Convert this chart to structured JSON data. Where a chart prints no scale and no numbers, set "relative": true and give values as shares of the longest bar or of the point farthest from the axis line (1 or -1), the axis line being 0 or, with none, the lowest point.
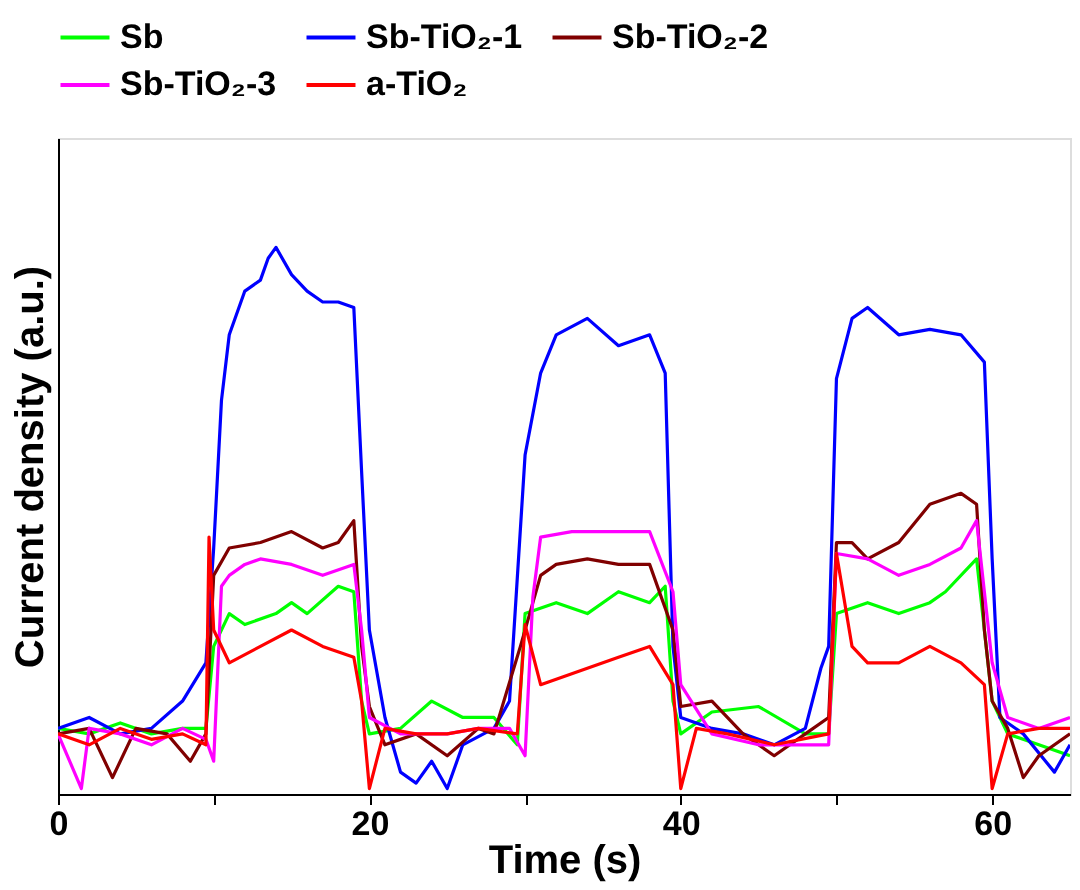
{
  "chart_data": {
    "type": "line",
    "xlabel": "Time (s)",
    "ylabel": "Current density (a.u.)",
    "relative": true,
    "xlim": [
      0,
      65
    ],
    "xticks": [
      0,
      {
        "value": 10,
        "label": null
      },
      20,
      {
        "value": 30,
        "label": null
      },
      40,
      {
        "value": 50,
        "label": null
      },
      60
    ],
    "legend": "top",
    "grid": false,
    "line_style": "solid",
    "marker": "none",
    "series": [
      {
        "name": "Sb",
        "color": "#00ff00",
        "x": [
          0,
          2,
          4,
          6,
          8,
          9.5,
          10,
          11,
          12,
          14,
          15,
          16,
          18,
          19,
          19.5,
          20,
          22,
          24,
          26,
          28,
          29.5,
          30,
          32,
          34,
          36,
          38,
          39,
          39.5,
          40,
          42,
          45,
          48,
          49.5,
          50,
          52,
          54,
          56,
          57,
          59,
          60,
          61,
          63,
          65
        ],
        "values": [
          0.12,
          0.11,
          0.13,
          0.11,
          0.12,
          0.12,
          0.27,
          0.33,
          0.31,
          0.33,
          0.35,
          0.33,
          0.38,
          0.37,
          0.17,
          0.11,
          0.12,
          0.17,
          0.14,
          0.14,
          0.09,
          0.33,
          0.35,
          0.33,
          0.37,
          0.35,
          0.38,
          0.17,
          0.11,
          0.15,
          0.16,
          0.11,
          0.11,
          0.33,
          0.35,
          0.33,
          0.35,
          0.37,
          0.43,
          0.17,
          0.11,
          0.09,
          0.07
        ]
      },
      {
        "name": "Sb-TiO₂-1",
        "color": "#0000ff",
        "x": [
          0,
          2,
          4,
          6,
          8,
          9.5,
          10,
          10.5,
          11,
          12,
          13,
          13.5,
          14,
          15,
          16,
          17,
          18,
          19,
          19.5,
          20,
          21,
          22,
          23,
          24,
          25,
          26,
          28,
          29,
          30,
          31,
          32,
          34,
          36,
          38,
          39,
          39.5,
          40,
          42,
          44,
          46,
          48,
          49,
          49.5,
          50,
          51,
          52,
          54,
          56,
          58,
          59.5,
          60,
          60.5,
          62,
          64,
          65
        ],
        "values": [
          0.12,
          0.14,
          0.11,
          0.12,
          0.17,
          0.24,
          0.45,
          0.72,
          0.84,
          0.92,
          0.94,
          0.98,
          1.0,
          0.95,
          0.92,
          0.9,
          0.9,
          0.89,
          0.59,
          0.3,
          0.14,
          0.04,
          0.02,
          0.06,
          0.01,
          0.09,
          0.12,
          0.17,
          0.62,
          0.77,
          0.84,
          0.87,
          0.82,
          0.84,
          0.77,
          0.27,
          0.14,
          0.12,
          0.11,
          0.09,
          0.12,
          0.23,
          0.27,
          0.76,
          0.87,
          0.89,
          0.84,
          0.85,
          0.84,
          0.79,
          0.43,
          0.14,
          0.11,
          0.04,
          0.09
        ]
      },
      {
        "name": "Sb-TiO₂-2",
        "color": "#800000",
        "x": [
          0,
          2,
          3.5,
          5,
          7,
          8.5,
          9.5,
          10,
          11,
          13,
          15,
          17,
          18,
          19,
          19.5,
          20,
          21,
          23,
          25,
          27,
          28,
          29.7,
          31,
          32,
          34,
          36,
          38,
          39.5,
          40,
          42,
          44,
          46,
          48,
          49.5,
          50,
          51,
          52,
          54,
          56,
          58,
          59,
          59.5,
          60,
          61,
          62,
          63,
          65
        ],
        "values": [
          0.11,
          0.12,
          0.03,
          0.12,
          0.11,
          0.06,
          0.11,
          0.4,
          0.45,
          0.46,
          0.48,
          0.45,
          0.46,
          0.5,
          0.27,
          0.16,
          0.09,
          0.11,
          0.07,
          0.12,
          0.11,
          0.27,
          0.4,
          0.42,
          0.43,
          0.42,
          0.42,
          0.3,
          0.16,
          0.17,
          0.11,
          0.07,
          0.11,
          0.14,
          0.46,
          0.46,
          0.43,
          0.46,
          0.53,
          0.55,
          0.53,
          0.3,
          0.17,
          0.12,
          0.03,
          0.07,
          0.11
        ]
      },
      {
        "name": "Sb-TiO₂-3",
        "color": "#ff00ff",
        "x": [
          0,
          1.5,
          2,
          4,
          6,
          8,
          9.5,
          10,
          10.5,
          11,
          12,
          13,
          15,
          17,
          19,
          19.5,
          20,
          22,
          25,
          27,
          29,
          30,
          30.5,
          31,
          33,
          35,
          38,
          39.5,
          40,
          42,
          45,
          48,
          49.5,
          50,
          52,
          54,
          56,
          58,
          59,
          60,
          61,
          63,
          65
        ],
        "values": [
          0.11,
          0.01,
          0.12,
          0.11,
          0.09,
          0.12,
          0.1,
          0.06,
          0.38,
          0.4,
          0.42,
          0.43,
          0.42,
          0.4,
          0.42,
          0.3,
          0.14,
          0.11,
          0.11,
          0.12,
          0.12,
          0.07,
          0.36,
          0.47,
          0.48,
          0.48,
          0.48,
          0.37,
          0.2,
          0.11,
          0.09,
          0.09,
          0.09,
          0.44,
          0.43,
          0.4,
          0.42,
          0.45,
          0.5,
          0.24,
          0.14,
          0.12,
          0.14
        ]
      },
      {
        "name": "a-TiO₂",
        "color": "#ff0000",
        "x": [
          0,
          2,
          4,
          6,
          8,
          9.5,
          9.7,
          10,
          11,
          13,
          15,
          17,
          19,
          19.5,
          20,
          21,
          23,
          25,
          27,
          29.5,
          30,
          31,
          33,
          36,
          38,
          39.5,
          40,
          41,
          43,
          46,
          49.5,
          50,
          51,
          52,
          54,
          56,
          58,
          59.5,
          60,
          61,
          63,
          65
        ],
        "values": [
          0.11,
          0.09,
          0.12,
          0.1,
          0.11,
          0.09,
          0.47,
          0.3,
          0.24,
          0.27,
          0.3,
          0.27,
          0.25,
          0.17,
          0.01,
          0.12,
          0.11,
          0.11,
          0.12,
          0.11,
          0.31,
          0.2,
          0.22,
          0.25,
          0.27,
          0.2,
          0.01,
          0.12,
          0.11,
          0.09,
          0.11,
          0.44,
          0.27,
          0.24,
          0.24,
          0.27,
          0.24,
          0.2,
          0.01,
          0.11,
          0.12,
          0.12
        ]
      }
    ]
  }
}
